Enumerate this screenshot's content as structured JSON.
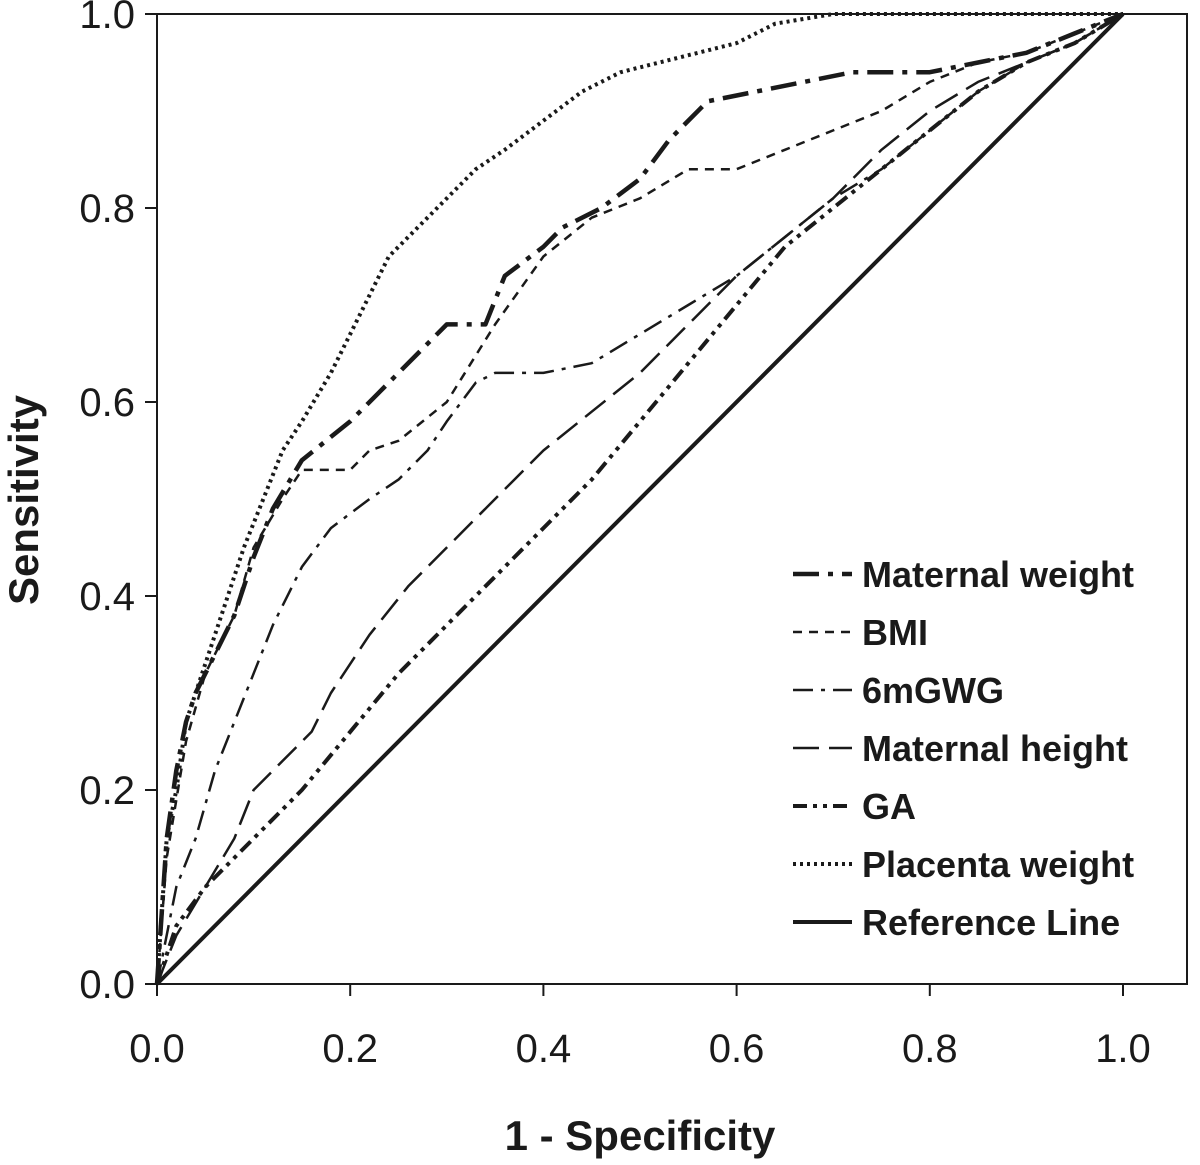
{
  "chart_data": {
    "type": "line",
    "xlabel": "1 - Specificity",
    "ylabel": "Sensitivity",
    "xlim": [
      0,
      1
    ],
    "ylim": [
      0,
      1
    ],
    "xticks": [
      "0.0",
      "0.2",
      "0.4",
      "0.6",
      "0.8",
      "1.0"
    ],
    "yticks": [
      "0.0",
      "0.2",
      "0.4",
      "0.6",
      "0.8",
      "1.0"
    ],
    "grid": false,
    "legend_position": "bottom-right",
    "series": [
      {
        "name": "Maternal weight",
        "dash": "dash-dot",
        "x": [
          0,
          0.01,
          0.02,
          0.03,
          0.04,
          0.06,
          0.08,
          0.1,
          0.12,
          0.15,
          0.2,
          0.23,
          0.25,
          0.3,
          0.34,
          0.36,
          0.4,
          0.42,
          0.46,
          0.5,
          0.53,
          0.57,
          0.62,
          0.67,
          0.72,
          0.8,
          0.85,
          0.9,
          0.95,
          1.0
        ],
        "y": [
          0,
          0.15,
          0.22,
          0.27,
          0.3,
          0.34,
          0.38,
          0.44,
          0.49,
          0.54,
          0.58,
          0.61,
          0.63,
          0.68,
          0.68,
          0.73,
          0.76,
          0.78,
          0.8,
          0.83,
          0.87,
          0.91,
          0.92,
          0.93,
          0.94,
          0.94,
          0.95,
          0.96,
          0.98,
          1.0
        ]
      },
      {
        "name": "BMI",
        "dash": "short-dash",
        "x": [
          0,
          0.01,
          0.03,
          0.05,
          0.08,
          0.1,
          0.13,
          0.15,
          0.2,
          0.22,
          0.25,
          0.3,
          0.35,
          0.4,
          0.45,
          0.5,
          0.55,
          0.6,
          0.65,
          0.7,
          0.75,
          0.8,
          0.85,
          0.9,
          0.95,
          1.0
        ],
        "y": [
          0,
          0.13,
          0.25,
          0.32,
          0.38,
          0.45,
          0.5,
          0.53,
          0.53,
          0.55,
          0.56,
          0.6,
          0.68,
          0.75,
          0.79,
          0.81,
          0.84,
          0.84,
          0.86,
          0.88,
          0.9,
          0.93,
          0.95,
          0.96,
          0.98,
          1.0
        ]
      },
      {
        "name": "6mGWG",
        "dash": "long-dash-dot",
        "x": [
          0,
          0.02,
          0.04,
          0.06,
          0.08,
          0.1,
          0.12,
          0.15,
          0.18,
          0.22,
          0.25,
          0.28,
          0.3,
          0.33,
          0.35,
          0.4,
          0.45,
          0.5,
          0.55,
          0.6,
          0.65,
          0.7,
          0.75,
          0.8,
          0.85,
          0.9,
          0.95,
          1.0
        ],
        "y": [
          0,
          0.1,
          0.15,
          0.22,
          0.27,
          0.32,
          0.37,
          0.43,
          0.47,
          0.5,
          0.52,
          0.55,
          0.58,
          0.62,
          0.63,
          0.63,
          0.64,
          0.67,
          0.7,
          0.73,
          0.77,
          0.81,
          0.84,
          0.88,
          0.92,
          0.95,
          0.97,
          1.0
        ]
      },
      {
        "name": "Maternal height",
        "dash": "long-dash",
        "x": [
          0,
          0.02,
          0.05,
          0.08,
          0.1,
          0.13,
          0.16,
          0.18,
          0.22,
          0.26,
          0.3,
          0.34,
          0.37,
          0.4,
          0.45,
          0.5,
          0.55,
          0.6,
          0.65,
          0.7,
          0.75,
          0.8,
          0.85,
          0.9,
          0.95,
          1.0
        ],
        "y": [
          0,
          0.05,
          0.1,
          0.15,
          0.2,
          0.23,
          0.26,
          0.3,
          0.36,
          0.41,
          0.45,
          0.49,
          0.52,
          0.55,
          0.59,
          0.63,
          0.68,
          0.73,
          0.77,
          0.81,
          0.86,
          0.9,
          0.93,
          0.95,
          0.97,
          1.0
        ]
      },
      {
        "name": "GA",
        "dash": "dash-dot-dot",
        "x": [
          0,
          0.02,
          0.05,
          0.1,
          0.15,
          0.2,
          0.25,
          0.3,
          0.35,
          0.4,
          0.45,
          0.5,
          0.55,
          0.6,
          0.65,
          0.7,
          0.75,
          0.8,
          0.85,
          0.9,
          0.95,
          1.0
        ],
        "y": [
          0,
          0.06,
          0.1,
          0.15,
          0.2,
          0.26,
          0.32,
          0.37,
          0.42,
          0.47,
          0.52,
          0.58,
          0.64,
          0.7,
          0.76,
          0.8,
          0.84,
          0.88,
          0.92,
          0.95,
          0.97,
          1.0
        ]
      },
      {
        "name": "Placenta weight",
        "dash": "dotted",
        "x": [
          0,
          0.01,
          0.02,
          0.03,
          0.05,
          0.07,
          0.09,
          0.11,
          0.13,
          0.15,
          0.18,
          0.2,
          0.22,
          0.24,
          0.27,
          0.3,
          0.33,
          0.36,
          0.4,
          0.44,
          0.48,
          0.52,
          0.56,
          0.6,
          0.64,
          0.7,
          0.8,
          0.9,
          1.0
        ],
        "y": [
          0,
          0.15,
          0.2,
          0.27,
          0.33,
          0.39,
          0.45,
          0.5,
          0.55,
          0.58,
          0.63,
          0.67,
          0.71,
          0.75,
          0.78,
          0.81,
          0.84,
          0.86,
          0.89,
          0.92,
          0.94,
          0.95,
          0.96,
          0.97,
          0.99,
          1.0,
          1.0,
          1.0,
          1.0
        ]
      },
      {
        "name": "Reference Line",
        "dash": "solid",
        "x": [
          0,
          1
        ],
        "y": [
          0,
          1
        ]
      }
    ]
  }
}
